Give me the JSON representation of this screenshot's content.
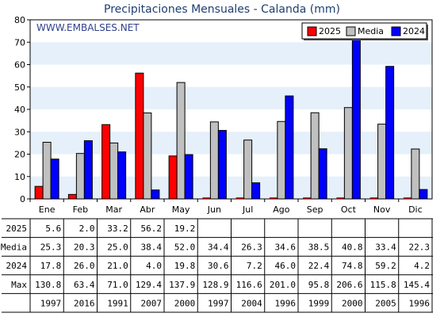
{
  "chart_data": {
    "type": "bar",
    "title": "Precipitaciones Mensuales - Calanda (mm)",
    "watermark": "WWW.EMBALSES.NET",
    "categories": [
      "Ene",
      "Feb",
      "Mar",
      "Abr",
      "May",
      "Jun",
      "Jul",
      "Ago",
      "Sep",
      "Oct",
      "Nov",
      "Dic"
    ],
    "legend_order": [
      "2025",
      "Media",
      "2024"
    ],
    "legend_position": "top-right",
    "ylim": [
      0,
      80
    ],
    "yticks": [
      0,
      10,
      20,
      30,
      40,
      50,
      60,
      70,
      80
    ],
    "series": [
      {
        "name": "2025",
        "color": "#ff0000",
        "values": [
          5.6,
          2.0,
          33.2,
          56.2,
          19.2,
          null,
          null,
          null,
          null,
          null,
          null,
          null
        ]
      },
      {
        "name": "Media",
        "color": "#c0c0c0",
        "values": [
          25.3,
          20.3,
          25.0,
          38.4,
          52.0,
          34.4,
          26.3,
          34.6,
          38.5,
          40.8,
          33.4,
          22.3
        ]
      },
      {
        "name": "2024",
        "color": "#0000ff",
        "values": [
          17.8,
          26.0,
          21.0,
          4.0,
          19.8,
          30.6,
          7.2,
          46.0,
          22.4,
          74.8,
          59.2,
          4.2
        ]
      }
    ],
    "table": {
      "rows": [
        {
          "label": "2025",
          "cells": [
            "5.6",
            "2.0",
            "33.2",
            "56.2",
            "19.2",
            "",
            "",
            "",
            "",
            "",
            "",
            ""
          ]
        },
        {
          "label": "Media",
          "cells": [
            "25.3",
            "20.3",
            "25.0",
            "38.4",
            "52.0",
            "34.4",
            "26.3",
            "34.6",
            "38.5",
            "40.8",
            "33.4",
            "22.3"
          ]
        },
        {
          "label": "2024",
          "cells": [
            "17.8",
            "26.0",
            "21.0",
            "4.0",
            "19.8",
            "30.6",
            "7.2",
            "46.0",
            "22.4",
            "74.8",
            "59.2",
            "4.2"
          ]
        },
        {
          "label": "Max",
          "cells": [
            "130.8",
            "63.4",
            "71.0",
            "129.4",
            "137.9",
            "128.9",
            "116.6",
            "201.0",
            "95.8",
            "206.6",
            "115.8",
            "145.4"
          ]
        },
        {
          "label": "",
          "cells": [
            "1997",
            "2016",
            "1991",
            "2007",
            "2000",
            "1997",
            "2004",
            "1996",
            "1999",
            "2000",
            "2005",
            "1996"
          ]
        }
      ]
    },
    "colors": {
      "band": "#e6f0fa",
      "plot_background": "#ffffff",
      "bar_stroke": "#000000"
    }
  }
}
